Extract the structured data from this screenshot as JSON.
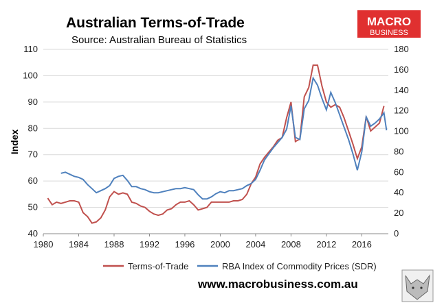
{
  "header": {
    "title": "Australian Terms-of-Trade",
    "subtitle": "Source: Australian Bureau of Statistics"
  },
  "logo": {
    "line1": "MACRO",
    "line2": "BUSINESS",
    "color": "#e03030"
  },
  "footer": {
    "url": "www.macrobusiness.com.au"
  },
  "colors": {
    "tot": "#c0504d",
    "rba": "#4f81bd"
  },
  "chart_data": {
    "type": "line",
    "ylabel": "Index",
    "xlim": [
      1980,
      2019
    ],
    "ylim_left": [
      40,
      110
    ],
    "ylim_right": [
      0,
      180
    ],
    "x_ticks": [
      1980,
      1984,
      1988,
      1992,
      1996,
      2000,
      2004,
      2008,
      2012,
      2016
    ],
    "y_ticks_left": [
      40,
      50,
      60,
      70,
      80,
      90,
      100,
      110
    ],
    "y_ticks_right": [
      0,
      20,
      40,
      60,
      80,
      100,
      120,
      140,
      160,
      180
    ],
    "grid": "horizontal",
    "legend_position": "bottom",
    "series": [
      {
        "name": "Terms-of-Trade",
        "axis": "left",
        "x": [
          1980.5,
          1981.0,
          1981.5,
          1982.0,
          1982.5,
          1983.0,
          1983.5,
          1984.0,
          1984.5,
          1985.0,
          1985.5,
          1986.0,
          1986.5,
          1987.0,
          1987.5,
          1988.0,
          1988.5,
          1989.0,
          1989.5,
          1990.0,
          1990.5,
          1991.0,
          1991.5,
          1992.0,
          1992.5,
          1993.0,
          1993.5,
          1994.0,
          1994.5,
          1995.0,
          1995.5,
          1996.0,
          1996.5,
          1997.0,
          1997.5,
          1998.0,
          1998.5,
          1999.0,
          1999.5,
          2000.0,
          2000.5,
          2001.0,
          2001.5,
          2002.0,
          2002.5,
          2003.0,
          2003.5,
          2004.0,
          2004.5,
          2005.0,
          2005.5,
          2006.0,
          2006.5,
          2007.0,
          2007.5,
          2008.0,
          2008.5,
          2009.0,
          2009.5,
          2010.0,
          2010.5,
          2011.0,
          2011.5,
          2012.0,
          2012.5,
          2013.0,
          2013.5,
          2014.0,
          2014.5,
          2015.0,
          2015.5,
          2016.0,
          2016.5,
          2017.0,
          2017.5,
          2018.0,
          2018.5
        ],
        "values": [
          53.5,
          51.0,
          52.0,
          51.5,
          52.0,
          52.5,
          52.5,
          52.0,
          48.0,
          46.5,
          44.0,
          44.5,
          46.0,
          49.0,
          54.0,
          56.0,
          55.0,
          55.5,
          55.0,
          52.0,
          51.5,
          50.5,
          50.0,
          48.5,
          47.5,
          47.0,
          47.5,
          49.0,
          49.5,
          51.0,
          52.0,
          52.0,
          52.5,
          51.0,
          49.0,
          49.5,
          50.0,
          52.0,
          52.0,
          52.0,
          52.0,
          52.0,
          52.5,
          52.5,
          53.0,
          55.0,
          59.0,
          61.5,
          66.5,
          69.0,
          71.0,
          73.0,
          75.5,
          76.5,
          84.0,
          90.0,
          75.0,
          76.0,
          92.0,
          95.5,
          104.0,
          104.0,
          96.0,
          90.0,
          88.0,
          89.0,
          88.0,
          84.0,
          79.0,
          74.0,
          68.5,
          73.0,
          84.5,
          79.0,
          80.5,
          82.0,
          88.5
        ]
      },
      {
        "name": "RBA Index of Commodity Prices (SDR)",
        "axis": "right",
        "x": [
          1982.0,
          1982.5,
          1983.0,
          1983.5,
          1984.0,
          1984.5,
          1985.0,
          1985.5,
          1986.0,
          1986.5,
          1987.0,
          1987.5,
          1988.0,
          1988.5,
          1989.0,
          1989.5,
          1990.0,
          1990.5,
          1991.0,
          1991.5,
          1992.0,
          1992.5,
          1993.0,
          1993.5,
          1994.0,
          1994.5,
          1995.0,
          1995.5,
          1996.0,
          1996.5,
          1997.0,
          1997.5,
          1998.0,
          1998.5,
          1999.0,
          1999.5,
          2000.0,
          2000.5,
          2001.0,
          2001.5,
          2002.0,
          2002.5,
          2003.0,
          2003.5,
          2004.0,
          2004.5,
          2005.0,
          2005.5,
          2006.0,
          2006.5,
          2007.0,
          2007.5,
          2008.0,
          2008.5,
          2009.0,
          2009.5,
          2010.0,
          2010.5,
          2011.0,
          2011.5,
          2012.0,
          2012.5,
          2013.0,
          2013.5,
          2014.0,
          2014.5,
          2015.0,
          2015.5,
          2016.0,
          2016.5,
          2017.0,
          2017.5,
          2018.0,
          2018.5,
          2018.8
        ],
        "values": [
          59,
          60,
          58,
          56,
          55,
          53,
          48,
          44,
          40,
          42,
          44,
          47,
          54,
          56,
          57,
          52,
          46,
          46,
          44,
          43,
          41,
          40,
          40,
          41,
          42,
          43,
          44,
          44,
          45,
          44,
          43,
          38,
          34,
          34,
          36,
          39,
          41,
          40,
          42,
          42,
          43,
          44,
          47,
          49,
          53,
          62,
          72,
          78,
          84,
          89,
          94,
          102,
          125,
          94,
          92,
          122,
          130,
          152,
          145,
          132,
          121,
          138,
          128,
          116,
          104,
          92,
          78,
          62,
          80,
          114,
          105,
          108,
          112,
          118,
          101
        ]
      }
    ]
  }
}
